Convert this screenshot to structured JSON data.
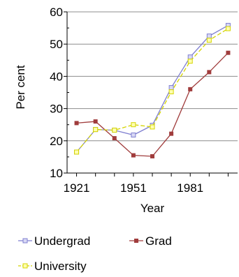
{
  "chart_data": {
    "type": "line",
    "title": "",
    "xlabel": "Year",
    "ylabel": "Per cent",
    "xlim": [
      1916,
      2006
    ],
    "ylim": [
      10,
      60
    ],
    "x_ticks": [
      1921,
      1951,
      1981
    ],
    "y_ticks": [
      10,
      20,
      30,
      40,
      50,
      60
    ],
    "grid": "horizontal",
    "legend_position": "bottom",
    "series": [
      {
        "name": "Undergrad",
        "color": "#7f7fd0",
        "marker": "square-outline",
        "dash": "solid",
        "x": [
          1921,
          1931,
          1941,
          1951,
          1961,
          1971,
          1981,
          1991,
          2001
        ],
        "y": [
          16.5,
          23.5,
          23.3,
          21.8,
          24.8,
          36.5,
          46,
          52.5,
          55.8
        ]
      },
      {
        "name": "Grad",
        "color": "#a03c3c",
        "marker": "square-filled",
        "dash": "solid",
        "x": [
          1921,
          1931,
          1941,
          1951,
          1961,
          1971,
          1981,
          1991,
          2001
        ],
        "y": [
          25.5,
          26,
          20.8,
          15.5,
          15.2,
          22.2,
          36,
          41.3,
          47.3
        ]
      },
      {
        "name": "University",
        "color": "#d4d400",
        "marker": "square-outline",
        "dash": "dashed",
        "x": [
          1921,
          1931,
          1941,
          1951,
          1961,
          1971,
          1981,
          1991,
          2001
        ],
        "y": [
          16.5,
          23.5,
          23.3,
          25,
          24.3,
          35.2,
          44.7,
          51.2,
          54.8
        ]
      }
    ]
  }
}
